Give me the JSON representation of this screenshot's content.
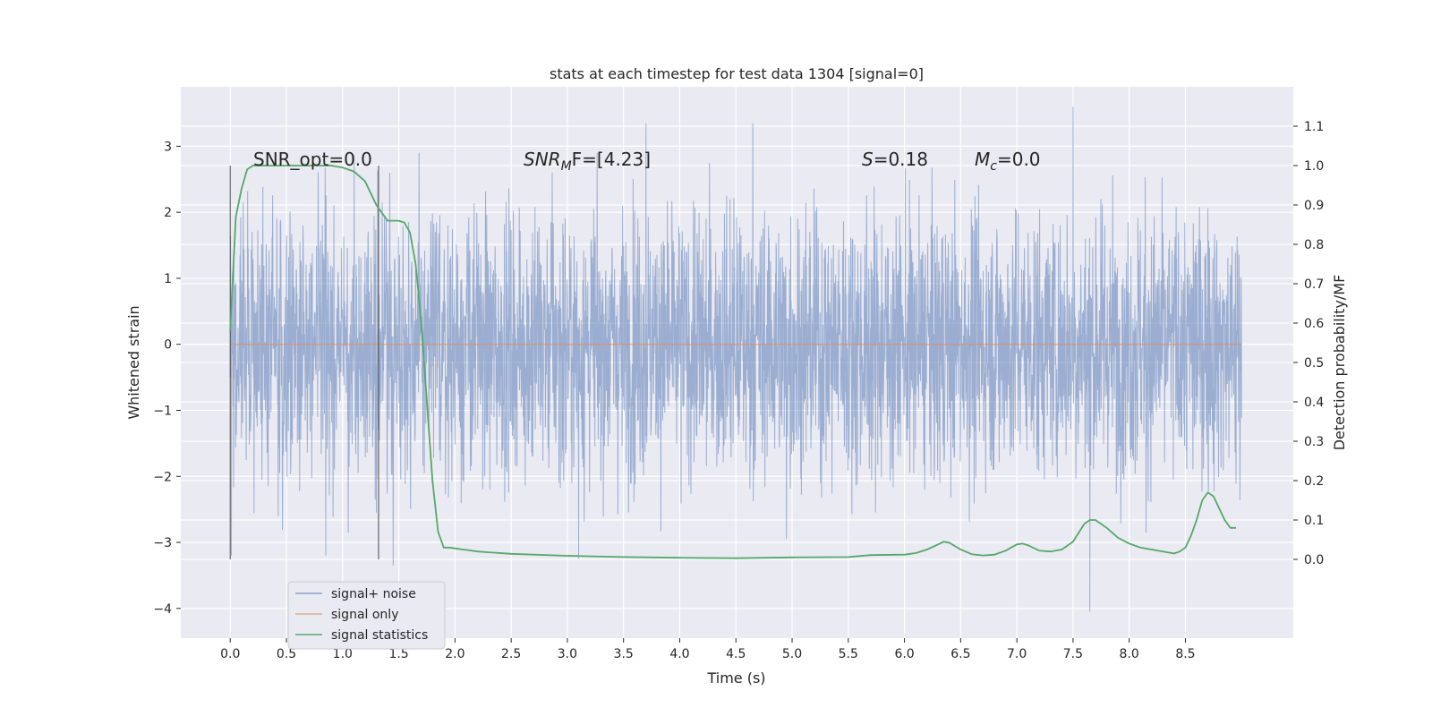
{
  "chart_data": {
    "type": "line",
    "title": "stats at each timestep for test data 1304 [signal=0]",
    "xlabel": "Time (s)",
    "ylabel": "Whitened strain",
    "y2label": "Detection probability/MF",
    "xlim": [
      -0.44,
      9.46
    ],
    "ylim": [
      -4.45,
      3.9
    ],
    "y2lim": [
      -0.2,
      1.2
    ],
    "grid": true,
    "legend_position": "lower-left",
    "xticks": [
      "0.0",
      "0.5",
      "1.0",
      "1.5",
      "2.0",
      "2.5",
      "3.0",
      "3.5",
      "4.0",
      "4.5",
      "5.0",
      "5.5",
      "6.0",
      "6.5",
      "7.0",
      "7.5",
      "8.0",
      "8.5"
    ],
    "xtick_values": [
      0,
      0.5,
      1,
      1.5,
      2,
      2.5,
      3,
      3.5,
      4,
      4.5,
      5,
      5.5,
      6,
      6.5,
      7,
      7.5,
      8,
      8.5
    ],
    "yticks": [
      "3",
      "2",
      "1",
      "0",
      "−1",
      "−2",
      "−3",
      "−4"
    ],
    "ytick_values": [
      3,
      2,
      1,
      0,
      -1,
      -2,
      -3,
      -4
    ],
    "y2ticks": [
      "1.1",
      "1.0",
      "0.9",
      "0.8",
      "0.7",
      "0.6",
      "0.5",
      "0.4",
      "0.3",
      "0.2",
      "0.1",
      "0.0"
    ],
    "y2tick_values": [
      1.1,
      1.0,
      0.9,
      0.8,
      0.7,
      0.6,
      0.5,
      0.4,
      0.3,
      0.2,
      0.1,
      0.0
    ],
    "annotations": [
      {
        "id": "snr-opt",
        "text": "SNR_opt=0.0"
      },
      {
        "id": "snr-mf",
        "text": "SNRₘF=[4.23]",
        "base": "SNR",
        "sub": "M",
        "rest": "F=[4.23]"
      },
      {
        "id": "s-val",
        "text": "S=0.18",
        "base": "S",
        "rest": "=0.18"
      },
      {
        "id": "mc-val",
        "text": "Mc=0.0",
        "base": "M",
        "sub": "c",
        "rest": "=0.0"
      }
    ],
    "vertical_markers": [
      0.0,
      1.32
    ],
    "series": [
      {
        "name": "signal+ noise",
        "color": "#4c72b0",
        "style": "dense-noise",
        "x_range": [
          0,
          9.0
        ],
        "typical_amplitude": 1.0,
        "peaks": [
          [
            0.01,
            2.75
          ],
          [
            0.01,
            -3.2
          ],
          [
            1.45,
            -3.35
          ],
          [
            3.1,
            -3.25
          ],
          [
            3.7,
            3.35
          ],
          [
            4.65,
            3.35
          ],
          [
            4.95,
            -2.95
          ],
          [
            7.5,
            3.6
          ],
          [
            7.65,
            -4.05
          ],
          [
            0.85,
            -3.2
          ],
          [
            1.05,
            -2.85
          ],
          [
            8.15,
            -2.85
          ]
        ]
      },
      {
        "name": "signal only",
        "color": "#dd8452",
        "x": [
          0,
          9.0
        ],
        "y": [
          0,
          0
        ]
      },
      {
        "name": "signal statistics",
        "color": "#55a868",
        "axis": "right",
        "x": [
          0.0,
          0.05,
          0.1,
          0.15,
          0.2,
          0.3,
          0.5,
          0.7,
          0.9,
          1.0,
          1.1,
          1.2,
          1.25,
          1.3,
          1.35,
          1.4,
          1.45,
          1.5,
          1.55,
          1.6,
          1.65,
          1.7,
          1.75,
          1.8,
          1.85,
          1.9,
          1.95,
          2.0,
          2.05,
          2.1,
          2.2,
          2.3,
          2.5,
          3.0,
          3.5,
          4.0,
          4.5,
          5.0,
          5.5,
          5.7,
          6.0,
          6.1,
          6.2,
          6.3,
          6.35,
          6.4,
          6.5,
          6.6,
          6.7,
          6.8,
          6.9,
          7.0,
          7.05,
          7.1,
          7.2,
          7.3,
          7.4,
          7.5,
          7.6,
          7.65,
          7.7,
          7.8,
          7.9,
          8.0,
          8.1,
          8.2,
          8.3,
          8.4,
          8.45,
          8.5,
          8.55,
          8.6,
          8.65,
          8.7,
          8.75,
          8.8,
          8.85,
          8.9,
          8.95
        ],
        "y": [
          0.58,
          0.87,
          0.94,
          0.99,
          1.0,
          1.0,
          1.0,
          1.0,
          1.0,
          0.995,
          0.985,
          0.96,
          0.93,
          0.9,
          0.88,
          0.86,
          0.86,
          0.86,
          0.855,
          0.83,
          0.75,
          0.6,
          0.4,
          0.2,
          0.07,
          0.03,
          0.03,
          0.028,
          0.026,
          0.024,
          0.02,
          0.018,
          0.014,
          0.009,
          0.006,
          0.004,
          0.003,
          0.005,
          0.006,
          0.011,
          0.012,
          0.016,
          0.025,
          0.038,
          0.045,
          0.042,
          0.025,
          0.013,
          0.01,
          0.012,
          0.022,
          0.038,
          0.04,
          0.036,
          0.022,
          0.02,
          0.025,
          0.045,
          0.09,
          0.1,
          0.1,
          0.08,
          0.055,
          0.04,
          0.03,
          0.025,
          0.02,
          0.015,
          0.02,
          0.03,
          0.06,
          0.1,
          0.15,
          0.17,
          0.16,
          0.13,
          0.1,
          0.08,
          0.08
        ]
      }
    ]
  }
}
